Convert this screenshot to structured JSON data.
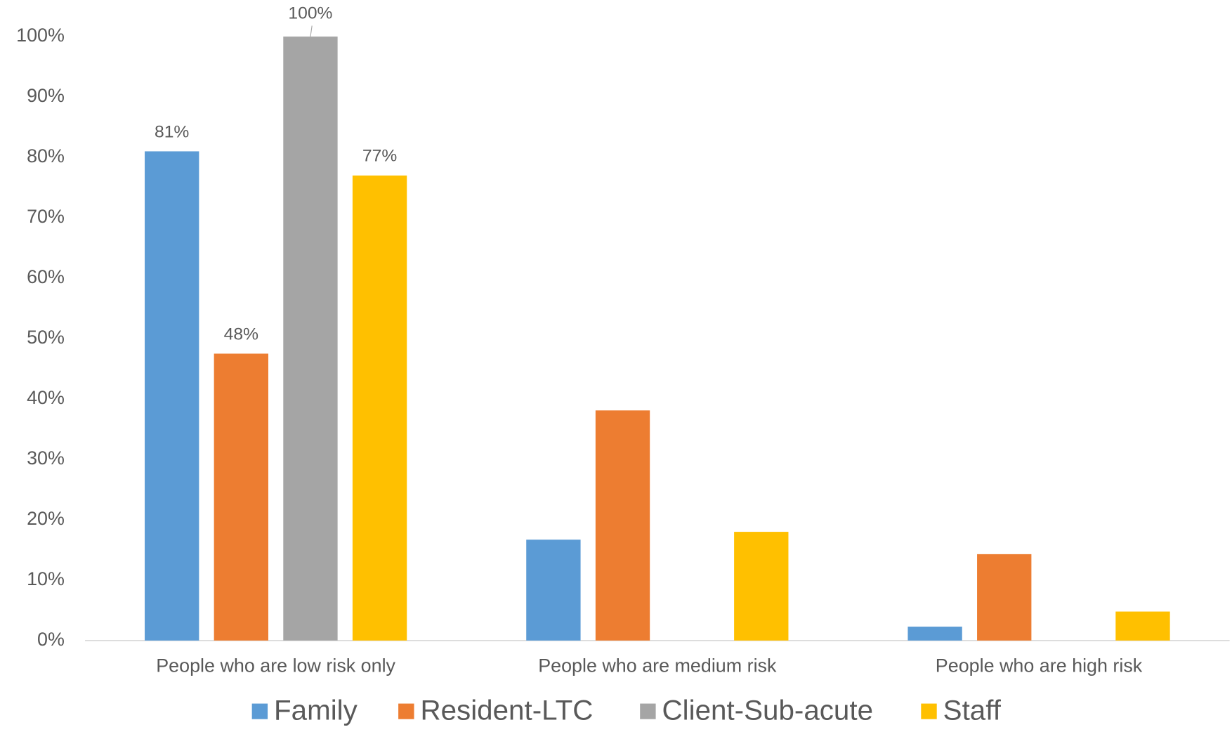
{
  "chart_data": {
    "type": "bar",
    "categories": [
      "People who are low risk only",
      "People who are medium risk",
      "People who are high risk"
    ],
    "series": [
      {
        "name": "Family",
        "color": "#5b9bd5",
        "values": [
          81,
          16.7,
          2.3
        ],
        "value_labels": [
          "81%",
          null,
          null
        ]
      },
      {
        "name": "Resident-LTC",
        "color": "#ed7d31",
        "values": [
          47.5,
          38.1,
          14.3
        ],
        "value_labels": [
          "48%",
          null,
          null
        ]
      },
      {
        "name": "Client-Sub-acute",
        "color": "#a5a5a5",
        "values": [
          100,
          0,
          0
        ],
        "value_labels": [
          "100%",
          null,
          null
        ]
      },
      {
        "name": "Staff",
        "color": "#ffc000",
        "values": [
          77,
          18,
          4.8
        ],
        "value_labels": [
          "77%",
          null,
          null
        ]
      }
    ],
    "ylim": [
      0,
      100
    ],
    "yticks": [
      {
        "value": 0,
        "label": "0%"
      },
      {
        "value": 10,
        "label": "10%"
      },
      {
        "value": 20,
        "label": "20%"
      },
      {
        "value": 30,
        "label": "30%"
      },
      {
        "value": 40,
        "label": "40%"
      },
      {
        "value": 50,
        "label": "50%"
      },
      {
        "value": 60,
        "label": "60%"
      },
      {
        "value": 70,
        "label": "70%"
      },
      {
        "value": 80,
        "label": "80%"
      },
      {
        "value": 90,
        "label": "90%"
      },
      {
        "value": 100,
        "label": "100%"
      }
    ],
    "grid": false,
    "legend": "bottom"
  }
}
